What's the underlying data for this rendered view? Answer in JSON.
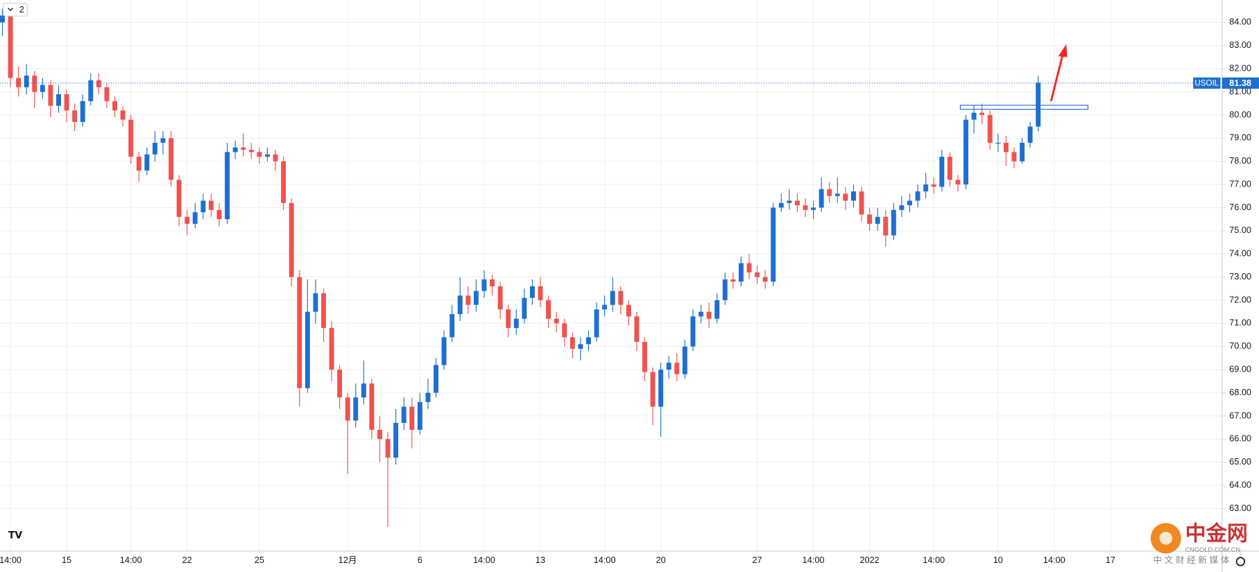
{
  "chart_data": {
    "type": "candlestick",
    "interval_badge": "2",
    "categories": [
      null,
      "14:00",
      null,
      null,
      null,
      null,
      null,
      null,
      "15",
      null,
      null,
      null,
      null,
      null,
      null,
      null,
      "14:00",
      null,
      null,
      null,
      null,
      null,
      null,
      "22",
      null,
      null,
      null,
      null,
      null,
      null,
      null,
      null,
      "25",
      null,
      null,
      null,
      null,
      null,
      null,
      null,
      null,
      null,
      null,
      "12月",
      null,
      null,
      null,
      null,
      null,
      null,
      null,
      null,
      "6",
      null,
      null,
      null,
      null,
      null,
      null,
      null,
      "14:00",
      null,
      null,
      null,
      null,
      null,
      null,
      "13",
      null,
      null,
      null,
      null,
      null,
      null,
      null,
      "14:00",
      null,
      null,
      null,
      null,
      null,
      null,
      "20",
      null,
      null,
      null,
      null,
      null,
      null,
      null,
      null,
      null,
      null,
      null,
      "27",
      null,
      null,
      null,
      null,
      null,
      null,
      "14:00",
      null,
      null,
      null,
      null,
      null,
      null,
      "2022",
      null,
      null,
      null,
      null,
      null,
      null,
      null,
      "14:00",
      null,
      null,
      null,
      null,
      null,
      null,
      null,
      "10",
      null,
      null,
      null,
      null,
      null,
      null,
      "14:00",
      null,
      null,
      null,
      null,
      null,
      null,
      "17",
      null,
      null,
      null,
      null,
      null,
      null,
      null,
      null,
      null
    ],
    "series": [
      {
        "name": "USOIL",
        "up_color": "#1e6fd0",
        "down_color": "#ef5350",
        "open": [
          84.0,
          84.3,
          81.6,
          81.2,
          81.7,
          81.0,
          81.3,
          80.4,
          80.9,
          80.2,
          79.7,
          80.6,
          81.5,
          81.2,
          80.6,
          80.2,
          79.8,
          78.2,
          77.6,
          78.3,
          78.8,
          79.0,
          77.2,
          75.6,
          75.3,
          75.8,
          76.3,
          75.9,
          75.5,
          78.4,
          78.6,
          78.5,
          78.4,
          78.2,
          78.3,
          78.0,
          76.2,
          73.0,
          68.2,
          71.5,
          72.3,
          70.8,
          69.0,
          67.8,
          66.8,
          67.8,
          68.4,
          66.4,
          66.0,
          65.2,
          66.7,
          67.4,
          66.4,
          67.6,
          68.0,
          69.2,
          70.4,
          71.4,
          72.2,
          71.8,
          72.4,
          72.9,
          72.6,
          71.6,
          70.8,
          71.2,
          72.1,
          72.6,
          72.0,
          71.2,
          71.0,
          70.4,
          69.9,
          70.1,
          70.4,
          71.6,
          71.8,
          72.4,
          71.8,
          71.3,
          70.2,
          68.9,
          67.4,
          69.0,
          69.3,
          68.8,
          70.0,
          71.3,
          71.5,
          71.2,
          72.0,
          72.9,
          72.8,
          73.6,
          73.2,
          73.0,
          72.8,
          76.0,
          76.2,
          76.3,
          76.1,
          75.9,
          76.0,
          76.8,
          76.5,
          76.6,
          76.3,
          76.7,
          75.7,
          75.3,
          75.6,
          74.8,
          75.9,
          76.1,
          76.3,
          76.7,
          77.0,
          76.9,
          78.2,
          77.2,
          77.0,
          79.8,
          80.1,
          80.0,
          78.8,
          78.8,
          78.4,
          78.0,
          78.8,
          79.5,
          null,
          null,
          null,
          null,
          null,
          null,
          null,
          null,
          null,
          null,
          null,
          null,
          null,
          null,
          null,
          null,
          null,
          null
        ],
        "high": [
          84.6,
          84.5,
          82.1,
          82.2,
          81.9,
          81.6,
          81.5,
          81.3,
          81.1,
          80.5,
          80.9,
          81.8,
          81.8,
          81.4,
          80.8,
          80.4,
          80.0,
          78.4,
          78.6,
          79.3,
          79.3,
          79.3,
          77.4,
          75.9,
          76.2,
          76.6,
          76.6,
          76.2,
          78.8,
          78.9,
          79.2,
          78.8,
          78.6,
          78.6,
          78.5,
          78.2,
          76.4,
          73.3,
          72.9,
          72.9,
          72.5,
          71.1,
          69.2,
          68.0,
          68.4,
          69.4,
          68.6,
          67.0,
          66.3,
          67.3,
          67.8,
          67.8,
          68.0,
          68.6,
          69.5,
          70.7,
          71.8,
          73.0,
          72.6,
          72.9,
          73.3,
          73.1,
          72.8,
          71.8,
          71.6,
          72.5,
          72.9,
          73.0,
          72.2,
          71.5,
          71.2,
          70.6,
          70.4,
          70.7,
          71.9,
          72.2,
          73.0,
          72.6,
          72.0,
          71.5,
          70.4,
          69.1,
          69.3,
          69.6,
          69.7,
          70.3,
          71.6,
          71.8,
          71.9,
          72.3,
          73.2,
          73.2,
          73.9,
          74.0,
          73.5,
          73.3,
          76.2,
          76.6,
          76.8,
          76.6,
          76.4,
          76.3,
          77.3,
          77.1,
          77.3,
          76.9,
          77.0,
          76.9,
          76.0,
          76.0,
          75.9,
          76.2,
          76.5,
          76.6,
          77.0,
          77.5,
          77.3,
          78.5,
          78.4,
          77.4,
          80.0,
          80.4,
          80.5,
          80.2,
          79.2,
          79.1,
          78.6,
          79.0,
          79.7,
          81.7,
          null,
          null,
          null,
          null,
          null,
          null,
          null,
          null,
          null,
          null,
          null,
          null,
          null,
          null,
          null,
          null,
          null,
          null
        ],
        "low": [
          83.4,
          81.2,
          80.8,
          80.9,
          80.3,
          80.7,
          79.9,
          80.1,
          79.7,
          79.3,
          79.5,
          80.4,
          80.9,
          80.3,
          79.9,
          79.5,
          77.9,
          77.1,
          77.4,
          78.0,
          78.3,
          76.9,
          75.2,
          74.8,
          75.1,
          75.5,
          75.6,
          75.2,
          75.3,
          78.1,
          78.2,
          78.1,
          77.9,
          78.0,
          77.6,
          75.9,
          72.6,
          67.4,
          68.0,
          71.0,
          70.2,
          68.5,
          67.3,
          64.5,
          66.5,
          67.5,
          66.0,
          65.0,
          62.2,
          64.9,
          66.4,
          65.6,
          66.2,
          67.3,
          67.8,
          69.0,
          70.2,
          71.1,
          71.4,
          71.5,
          72.1,
          72.2,
          71.2,
          70.4,
          70.5,
          71.0,
          71.8,
          71.7,
          70.8,
          70.6,
          70.0,
          69.5,
          69.4,
          69.8,
          70.2,
          71.3,
          71.5,
          71.4,
          70.9,
          69.8,
          68.5,
          66.6,
          66.1,
          68.6,
          68.5,
          68.6,
          69.8,
          71.0,
          70.8,
          71.0,
          71.8,
          72.5,
          72.6,
          72.9,
          72.7,
          72.5,
          72.6,
          75.8,
          75.9,
          75.8,
          75.6,
          75.5,
          75.8,
          76.2,
          76.2,
          75.9,
          76.0,
          75.4,
          75.0,
          75.0,
          74.3,
          74.6,
          75.6,
          75.8,
          76.0,
          76.4,
          76.6,
          76.7,
          76.9,
          76.7,
          76.8,
          79.2,
          79.6,
          78.5,
          78.4,
          77.8,
          77.7,
          77.9,
          78.6,
          79.3,
          null,
          null,
          null,
          null,
          null,
          null,
          null,
          null,
          null,
          null,
          null,
          null,
          null,
          null,
          null,
          null,
          null,
          null
        ],
        "close": [
          84.3,
          81.6,
          81.2,
          81.7,
          81.0,
          81.3,
          80.4,
          80.9,
          80.2,
          79.7,
          80.6,
          81.5,
          81.2,
          80.6,
          80.2,
          79.8,
          78.2,
          77.6,
          78.3,
          78.8,
          79.0,
          77.2,
          75.6,
          75.3,
          75.8,
          76.3,
          75.9,
          75.5,
          78.4,
          78.6,
          78.5,
          78.4,
          78.2,
          78.3,
          78.0,
          76.2,
          73.0,
          68.2,
          71.5,
          72.3,
          70.8,
          69.0,
          67.8,
          66.8,
          67.8,
          68.4,
          66.4,
          66.0,
          65.2,
          66.7,
          67.4,
          66.4,
          67.6,
          68.0,
          69.2,
          70.4,
          71.4,
          72.2,
          71.8,
          72.4,
          72.9,
          72.6,
          71.6,
          70.8,
          71.2,
          72.1,
          72.6,
          72.0,
          71.2,
          71.0,
          70.4,
          69.9,
          70.1,
          70.4,
          71.6,
          71.8,
          72.4,
          71.8,
          71.3,
          70.2,
          68.9,
          67.4,
          69.0,
          69.3,
          68.8,
          70.0,
          71.3,
          71.5,
          71.2,
          72.0,
          72.9,
          72.8,
          73.6,
          73.2,
          73.0,
          72.8,
          76.0,
          76.2,
          76.3,
          76.1,
          75.9,
          76.0,
          76.8,
          76.5,
          76.6,
          76.3,
          76.7,
          75.7,
          75.3,
          75.6,
          74.8,
          75.9,
          76.1,
          76.3,
          76.7,
          77.0,
          76.9,
          78.2,
          77.2,
          77.0,
          79.8,
          80.1,
          80.0,
          78.8,
          78.8,
          78.4,
          78.0,
          78.8,
          79.5,
          81.4,
          null,
          null,
          null,
          null,
          null,
          null,
          null,
          null,
          null,
          null,
          null,
          null,
          null,
          null,
          null,
          null,
          null,
          null
        ]
      }
    ],
    "price_line": {
      "name": "USOIL",
      "value": 81.38,
      "color": "#1e6fd0"
    },
    "ylim": [
      61.16,
      84.97
    ],
    "yticks": [
      {
        "value": 63,
        "label": "63.00"
      },
      {
        "value": 64,
        "label": "64.00"
      },
      {
        "value": 65,
        "label": "65.00"
      },
      {
        "value": 66,
        "label": "66.00"
      },
      {
        "value": 67,
        "label": "67.00"
      },
      {
        "value": 68,
        "label": "68.00"
      },
      {
        "value": 69,
        "label": "69.00"
      },
      {
        "value": 70,
        "label": "70.00"
      },
      {
        "value": 71,
        "label": "71.00"
      },
      {
        "value": 72,
        "label": "72.00"
      },
      {
        "value": 73,
        "label": "73.00"
      },
      {
        "value": 74,
        "label": "74.00"
      },
      {
        "value": 75,
        "label": "75.00"
      },
      {
        "value": 76,
        "label": "76.00"
      },
      {
        "value": 77,
        "label": "77.00"
      },
      {
        "value": 78,
        "label": "78.00"
      },
      {
        "value": 79,
        "label": "79.00"
      },
      {
        "value": 80,
        "label": "80.00"
      },
      {
        "value": 81,
        "label": "81.00"
      },
      {
        "value": 82,
        "label": "82.00"
      },
      {
        "value": 83,
        "label": "83.00"
      },
      {
        "value": 84,
        "label": "84.00"
      }
    ],
    "grid": true,
    "watermark": {
      "title": "中金网",
      "domain": "CNGOLD.COM.CN",
      "slogan": "中 文 财 经 新 媒 体"
    }
  }
}
